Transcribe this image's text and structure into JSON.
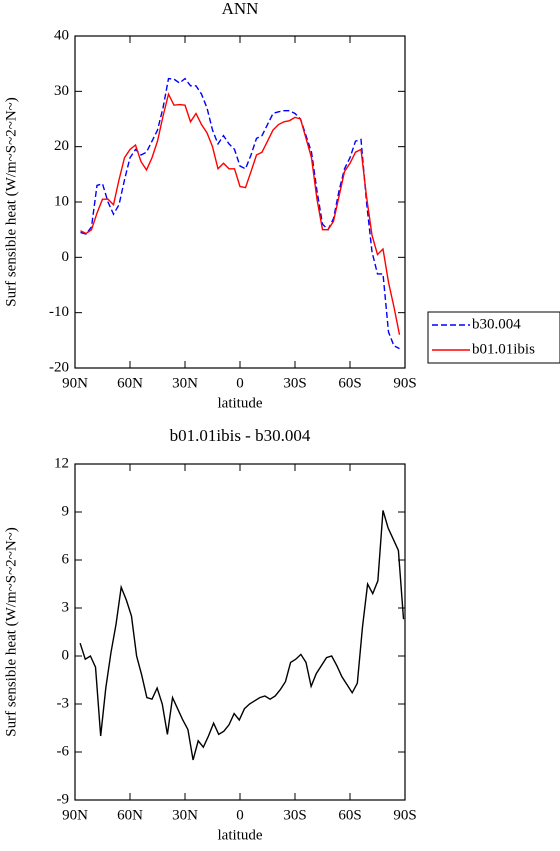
{
  "chart_data": [
    {
      "type": "line",
      "title": "ANN",
      "xlabel": "latitude",
      "ylabel": "Surf sensible heat (W/m~S~2~N~)",
      "x": [
        87,
        84,
        81,
        78,
        75,
        72,
        69,
        66,
        63,
        60,
        57,
        54,
        51,
        48,
        45,
        42,
        39,
        36,
        33,
        30,
        27,
        24,
        21,
        18,
        15,
        12,
        9,
        6,
        3,
        0,
        -3,
        -6,
        -9,
        -12,
        -15,
        -18,
        -21,
        -24,
        -27,
        -30,
        -33,
        -36,
        -39,
        -42,
        -45,
        -48,
        -51,
        -54,
        -57,
        -60,
        -63,
        -66,
        -69,
        -72,
        -75,
        -78,
        -81,
        -84,
        -87
      ],
      "series": [
        {
          "name": "b30.004",
          "color": "#0000ff",
          "style": "dashed",
          "values": [
            4.5,
            4.2,
            5.5,
            13,
            13.3,
            10,
            7.8,
            9.5,
            14,
            18,
            19.5,
            18.5,
            19,
            21,
            23,
            27,
            32.3,
            32.2,
            31.5,
            32.3,
            31,
            31,
            29.5,
            27,
            23,
            20.5,
            22,
            20.5,
            19.5,
            16.5,
            16,
            18.5,
            21.5,
            22,
            24,
            26,
            26.3,
            26.5,
            26.5,
            26,
            25,
            22,
            19,
            12,
            6,
            5,
            7,
            12,
            16,
            18,
            21,
            21.3,
            10,
            1,
            -3,
            -3,
            -13.5,
            -16,
            -16.5
          ]
        },
        {
          "name": "b01.01ibis",
          "color": "#ff0000",
          "style": "solid",
          "values": [
            4.8,
            4.3,
            5,
            8,
            10.5,
            10.5,
            9.5,
            14,
            18,
            19.5,
            20.3,
            17.3,
            15.8,
            18,
            21,
            25.5,
            29.5,
            27.5,
            27.6,
            27.5,
            24.5,
            26,
            24,
            22.5,
            20,
            16,
            17,
            16,
            16,
            12.8,
            12.6,
            15.5,
            18.5,
            19,
            21,
            23,
            24,
            24.5,
            24.7,
            25.3,
            25,
            21.5,
            18,
            10.5,
            5,
            5,
            6.5,
            11,
            15.5,
            17,
            19,
            19.5,
            11,
            4,
            0.5,
            1.5,
            -4.5,
            -9,
            -14
          ]
        }
      ],
      "xlim": [
        90,
        -90
      ],
      "xticks": [
        {
          "value": 90,
          "label": "90N"
        },
        {
          "value": 60,
          "label": "60N"
        },
        {
          "value": 30,
          "label": "30N"
        },
        0,
        {
          "value": -30,
          "label": "30S"
        },
        {
          "value": -60,
          "label": "60S"
        },
        {
          "value": -90,
          "label": "90S"
        }
      ],
      "ylim": [
        -20,
        40
      ],
      "yticks": [
        -20,
        -10,
        0,
        10,
        20,
        30,
        40
      ],
      "legend": "outside right"
    },
    {
      "type": "line",
      "title": "b01.01ibis - b30.004",
      "xlabel": "latitude",
      "ylabel": "Surf sensible heat (W/m~S~2~N~)",
      "x": [
        87.2,
        84.4,
        81.6,
        78.8,
        76,
        73.2,
        70.4,
        67.6,
        64.8,
        62,
        59.2,
        56.4,
        53.6,
        50.8,
        48,
        45.2,
        42.4,
        39.6,
        36.8,
        34,
        31.2,
        28.4,
        25.6,
        22.8,
        20,
        17.2,
        14.4,
        11.6,
        8.8,
        6,
        3.2,
        0.4,
        -2.4,
        -5.2,
        -8,
        -10.8,
        -13.6,
        -16.4,
        -19.2,
        -22,
        -24.8,
        -27.6,
        -30.4,
        -33.2,
        -36,
        -38.8,
        -41.6,
        -44.4,
        -47.2,
        -50,
        -52.8,
        -55.6,
        -58.4,
        -61.2,
        -64,
        -66.8,
        -69.6,
        -72.4,
        -75.2,
        -78,
        -80.8,
        -83.6,
        -86.4,
        -89.2
      ],
      "series": [
        {
          "color": "#000000",
          "style": "solid",
          "values": [
            0.8,
            -0.2,
            0,
            -0.7,
            -5,
            -2,
            0.2,
            2,
            4.3,
            3.5,
            2.5,
            0,
            -1.2,
            -2.6,
            -2.7,
            -2,
            -3,
            -4.9,
            -2.6,
            -3.3,
            -4,
            -4.6,
            -6.5,
            -5.3,
            -5.7,
            -5,
            -4.2,
            -4.9,
            -4.7,
            -4.3,
            -3.6,
            -4,
            -3.3,
            -3,
            -2.8,
            -2.6,
            -2.5,
            -2.7,
            -2.5,
            -2.1,
            -1.6,
            -0.4,
            -0.2,
            0.1,
            -0.4,
            -1.9,
            -1.1,
            -0.6,
            -0.1,
            0,
            -0.6,
            -1.3,
            -1.8,
            -2.3,
            -1.7,
            1.8,
            4.5,
            3.9,
            4.7,
            9.1,
            8,
            7.3,
            6.6,
            2.3
          ]
        }
      ],
      "xlim": [
        90,
        -90
      ],
      "xticks": [
        {
          "value": 90,
          "label": "90N"
        },
        {
          "value": 60,
          "label": "60N"
        },
        {
          "value": 30,
          "label": "30N"
        },
        0,
        {
          "value": -30,
          "label": "30S"
        },
        {
          "value": -60,
          "label": "60S"
        },
        {
          "value": -90,
          "label": "90S"
        }
      ],
      "ylim": [
        -9,
        12
      ],
      "yticks": [
        -9,
        -6,
        -3,
        0,
        3,
        6,
        9,
        12
      ]
    }
  ]
}
